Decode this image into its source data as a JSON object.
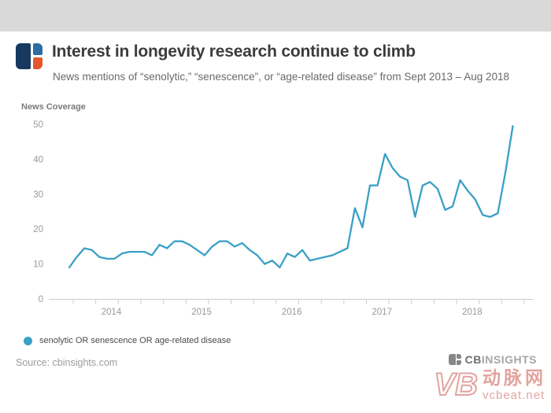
{
  "header": {
    "title": "Interest in longevity research continue to climb",
    "subtitle": "News mentions of “senolytic,” “senescence”, or “age-related disease” from Sept 2013 – Aug 2018"
  },
  "colors": {
    "line": "#3aa0c6",
    "logo_navy": "#17395f",
    "logo_blue": "#2d6ca2",
    "logo_orange": "#e4572d",
    "top_strip": "#d9d9d9",
    "axis": "#cccccc",
    "axis_text": "#999999",
    "watermark_red": "rgba(198,74,62,0.5)"
  },
  "chart_data": {
    "type": "line",
    "title": "Interest in longevity research continue to climb",
    "ylabel_top": "News Coverage",
    "xlabel": "",
    "ylim": [
      0,
      50
    ],
    "yticks": [
      0,
      10,
      20,
      30,
      40,
      50
    ],
    "grid": false,
    "legend_position": "bottom-left",
    "legend_label": "senolytic OR senescence OR age-related disease",
    "x_minor_ticks": "quarterly",
    "x_year_ticks": [
      {
        "label": "2014",
        "month_index": 4
      },
      {
        "label": "2015",
        "month_index": 16
      },
      {
        "label": "2016",
        "month_index": 28
      },
      {
        "label": "2017",
        "month_index": 40
      },
      {
        "label": "2018",
        "month_index": 52
      }
    ],
    "x_months": [
      "Sep 2013",
      "Oct 2013",
      "Nov 2013",
      "Dec 2013",
      "Jan 2014",
      "Feb 2014",
      "Mar 2014",
      "Apr 2014",
      "May 2014",
      "Jun 2014",
      "Jul 2014",
      "Aug 2014",
      "Sep 2014",
      "Oct 2014",
      "Nov 2014",
      "Dec 2014",
      "Jan 2015",
      "Feb 2015",
      "Mar 2015",
      "Apr 2015",
      "May 2015",
      "Jun 2015",
      "Jul 2015",
      "Aug 2015",
      "Sep 2015",
      "Oct 2015",
      "Nov 2015",
      "Dec 2015",
      "Jan 2016",
      "Feb 2016",
      "Mar 2016",
      "Apr 2016",
      "May 2016",
      "Jun 2016",
      "Jul 2016",
      "Aug 2016",
      "Sep 2016",
      "Oct 2016",
      "Nov 2016",
      "Dec 2016",
      "Jan 2017",
      "Feb 2017",
      "Mar 2017",
      "Apr 2017",
      "May 2017",
      "Jun 2017",
      "Jul 2017",
      "Aug 2017",
      "Sep 2017",
      "Oct 2017",
      "Nov 2017",
      "Dec 2017",
      "Jan 2018",
      "Feb 2018",
      "Mar 2018",
      "Apr 2018",
      "May 2018",
      "Jun 2018",
      "Jul 2018",
      "Aug 2018"
    ],
    "series": [
      {
        "name": "senolytic OR senescence OR age-related disease",
        "color": "#3aa0c6",
        "values": [
          9,
          12,
          14.5,
          14,
          12,
          11.5,
          11.5,
          13,
          13.5,
          13.5,
          13.5,
          12.5,
          15.5,
          14.5,
          16.5,
          16.5,
          15.5,
          14,
          12.5,
          15,
          16.5,
          16.5,
          15,
          16,
          14,
          12.5,
          10,
          11,
          9,
          13,
          12,
          14,
          11,
          11.5,
          12,
          12.5,
          13.5,
          14.5,
          26,
          20.5,
          32.5,
          32.5,
          41.5,
          37.5,
          35,
          34,
          23.5,
          32.5,
          33.5,
          31.5,
          25.5,
          26.5,
          34,
          31,
          28.5,
          24,
          23.5,
          24.5,
          36,
          49.5
        ]
      }
    ]
  },
  "footer": {
    "source": "Source: cbinsights.com",
    "brand_cb": "CB",
    "brand_insights": "INSIGHTS"
  },
  "watermark": {
    "vb": "VB",
    "cn": "动脉网",
    "site": "vcbeat.net"
  }
}
